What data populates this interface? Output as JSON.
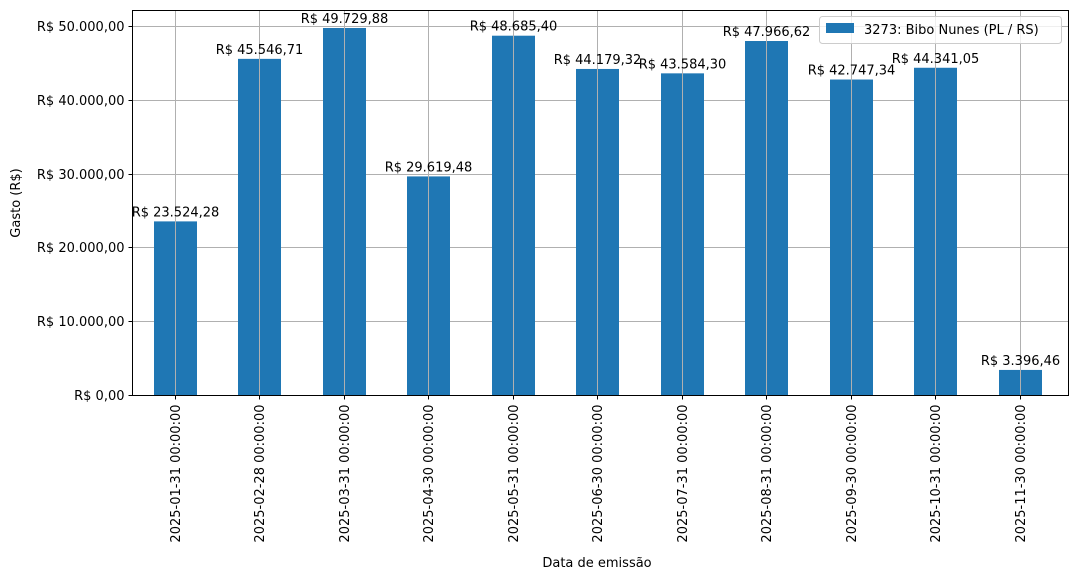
{
  "chart_data": {
    "type": "bar",
    "title": "",
    "xlabel": "Data de emissão",
    "ylabel": "Gasto (R$)",
    "ylim": [
      0,
      52200
    ],
    "grid": true,
    "legend_position": "upper right",
    "bar_color": "#1f77b4",
    "yticks": [
      0,
      10000,
      20000,
      30000,
      40000,
      50000
    ],
    "ytick_labels": [
      "R$ 0,00",
      "R$ 10.000,00",
      "R$ 20.000,00",
      "R$ 30.000,00",
      "R$ 40.000,00",
      "R$ 50.000,00"
    ],
    "categories": [
      "2025-01-31 00:00:00",
      "2025-02-28 00:00:00",
      "2025-03-31 00:00:00",
      "2025-04-30 00:00:00",
      "2025-05-31 00:00:00",
      "2025-06-30 00:00:00",
      "2025-07-31 00:00:00",
      "2025-08-31 00:00:00",
      "2025-09-30 00:00:00",
      "2025-10-31 00:00:00",
      "2025-11-30 00:00:00"
    ],
    "series": [
      {
        "name": "3273: Bibo Nunes (PL / RS)",
        "values": [
          23524.28,
          45546.71,
          49729.88,
          29619.48,
          48685.4,
          44179.32,
          43584.3,
          47966.62,
          42747.34,
          44341.05,
          3396.46
        ],
        "labels": [
          "R$ 23.524,28",
          "R$ 45.546,71",
          "R$ 49.729,88",
          "R$ 29.619,48",
          "R$ 48.685,40",
          "R$ 44.179,32",
          "R$ 43.584,30",
          "R$ 47.966,62",
          "R$ 42.747,34",
          "R$ 44.341,05",
          "R$ 3.396,46"
        ]
      }
    ]
  }
}
